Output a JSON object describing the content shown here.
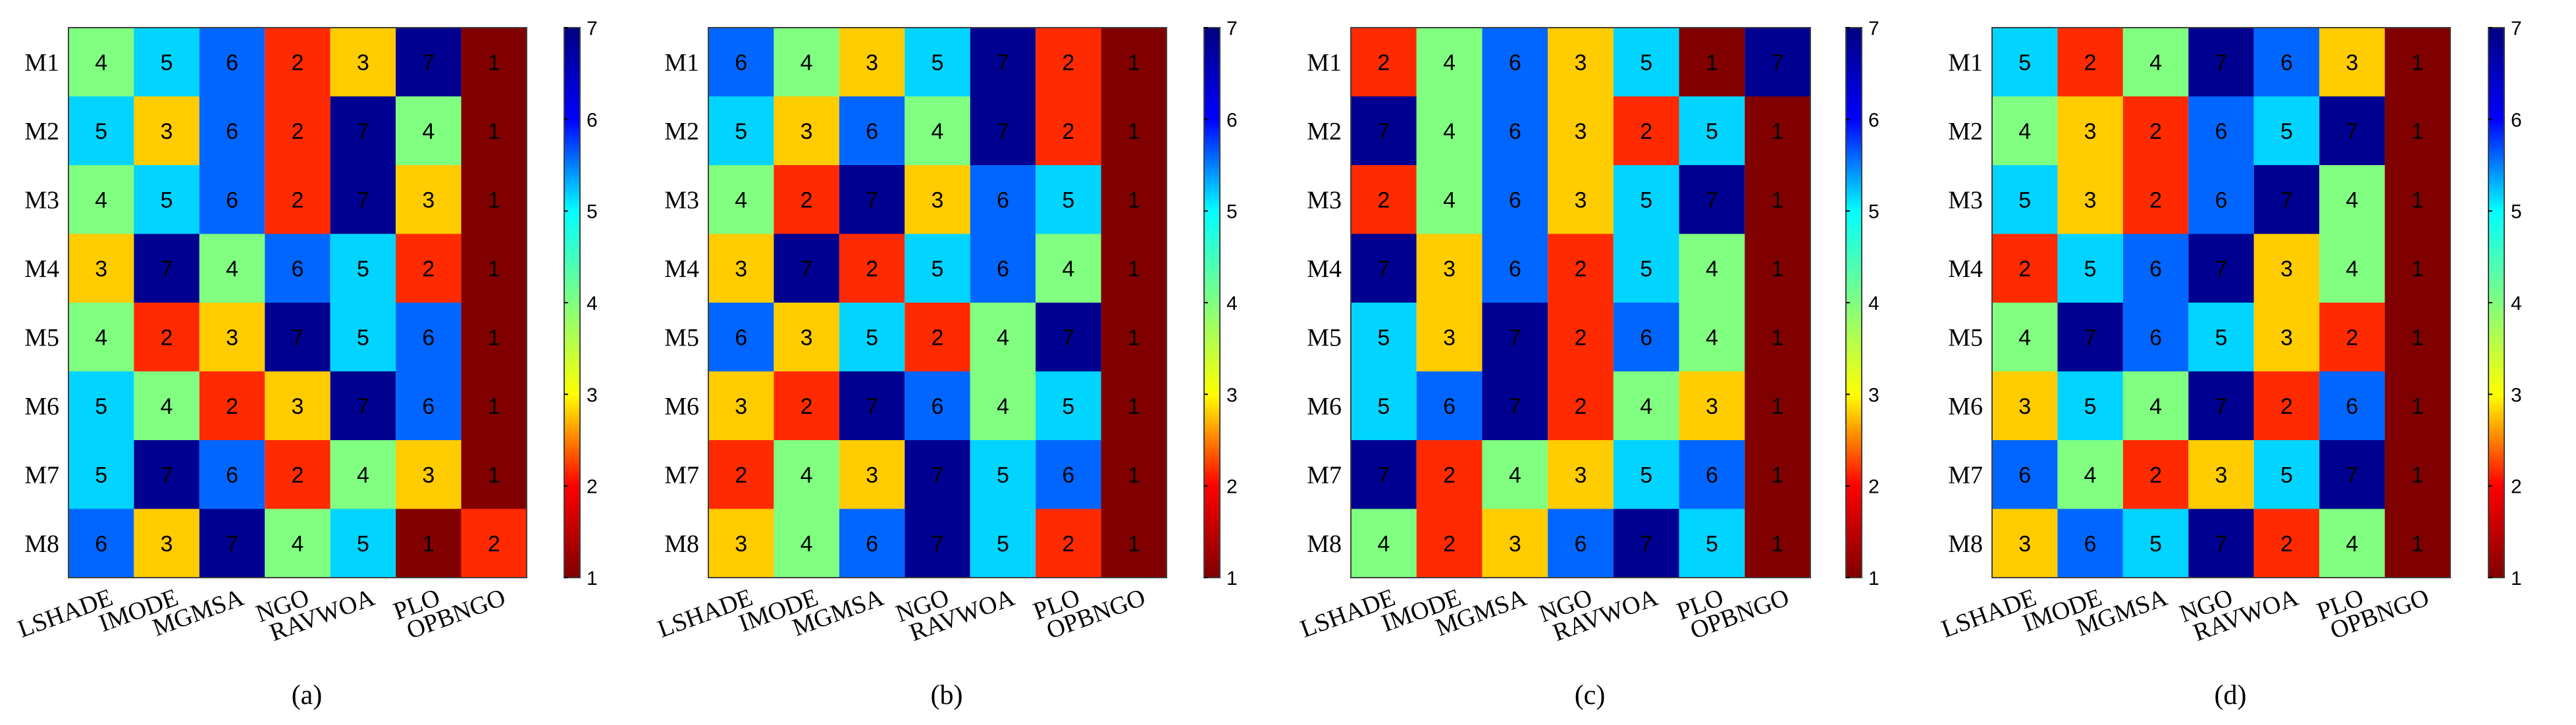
{
  "chart_data": [
    {
      "type": "heatmap",
      "panel_label": "(a)",
      "rows": [
        "M1",
        "M2",
        "M3",
        "M4",
        "M5",
        "M6",
        "M7",
        "M8"
      ],
      "columns": [
        "LSHADE",
        "IMODE",
        "MGMSA",
        "NGO",
        "RAVWOA",
        "PLO",
        "OPBNGO"
      ],
      "values": [
        [
          4,
          5,
          6,
          2,
          3,
          7,
          1
        ],
        [
          5,
          3,
          6,
          2,
          7,
          4,
          1
        ],
        [
          4,
          5,
          6,
          2,
          7,
          3,
          1
        ],
        [
          3,
          7,
          4,
          6,
          5,
          2,
          1
        ],
        [
          4,
          2,
          3,
          7,
          5,
          6,
          1
        ],
        [
          5,
          4,
          2,
          3,
          7,
          6,
          1
        ],
        [
          5,
          7,
          6,
          2,
          4,
          3,
          1
        ],
        [
          6,
          3,
          7,
          4,
          5,
          1,
          2
        ]
      ],
      "colorbar": {
        "min": 1,
        "max": 7,
        "ticks": [
          "1",
          "2",
          "3",
          "4",
          "5",
          "6",
          "7"
        ],
        "colormap": "jet"
      }
    },
    {
      "type": "heatmap",
      "panel_label": "(b)",
      "rows": [
        "M1",
        "M2",
        "M3",
        "M4",
        "M5",
        "M6",
        "M7",
        "M8"
      ],
      "columns": [
        "LSHADE",
        "IMODE",
        "MGMSA",
        "NGO",
        "RAVWOA",
        "PLO",
        "OPBNGO"
      ],
      "values": [
        [
          6,
          4,
          3,
          5,
          7,
          2,
          1
        ],
        [
          5,
          3,
          6,
          4,
          7,
          2,
          1
        ],
        [
          4,
          2,
          7,
          3,
          6,
          5,
          1
        ],
        [
          3,
          7,
          2,
          5,
          6,
          4,
          1
        ],
        [
          6,
          3,
          5,
          2,
          4,
          7,
          1
        ],
        [
          3,
          2,
          7,
          6,
          4,
          5,
          1
        ],
        [
          2,
          4,
          3,
          7,
          5,
          6,
          1
        ],
        [
          3,
          4,
          6,
          7,
          5,
          2,
          1
        ]
      ],
      "colorbar": {
        "min": 1,
        "max": 7,
        "ticks": [
          "1",
          "2",
          "3",
          "4",
          "5",
          "6",
          "7"
        ],
        "colormap": "jet"
      }
    },
    {
      "type": "heatmap",
      "panel_label": "(c)",
      "rows": [
        "M1",
        "M2",
        "M3",
        "M4",
        "M5",
        "M6",
        "M7",
        "M8"
      ],
      "columns": [
        "LSHADE",
        "IMODE",
        "MGMSA",
        "NGO",
        "RAVWOA",
        "PLO",
        "OPBNGO"
      ],
      "values": [
        [
          2,
          4,
          6,
          3,
          5,
          1,
          7
        ],
        [
          7,
          4,
          6,
          3,
          2,
          5,
          1
        ],
        [
          2,
          4,
          6,
          3,
          5,
          7,
          1
        ],
        [
          7,
          3,
          6,
          2,
          5,
          4,
          1
        ],
        [
          5,
          3,
          7,
          2,
          6,
          4,
          1
        ],
        [
          5,
          6,
          7,
          2,
          4,
          3,
          1
        ],
        [
          7,
          2,
          4,
          3,
          5,
          6,
          1
        ],
        [
          4,
          2,
          3,
          6,
          7,
          5,
          1
        ]
      ],
      "colorbar": {
        "min": 1,
        "max": 7,
        "ticks": [
          "1",
          "2",
          "3",
          "4",
          "5",
          "6",
          "7"
        ],
        "colormap": "jet"
      }
    },
    {
      "type": "heatmap",
      "panel_label": "(d)",
      "rows": [
        "M1",
        "M2",
        "M3",
        "M4",
        "M5",
        "M6",
        "M7",
        "M8"
      ],
      "columns": [
        "LSHADE",
        "IMODE",
        "MGMSA",
        "NGO",
        "RAVWOA",
        "PLO",
        "OPBNGO"
      ],
      "values": [
        [
          5,
          2,
          4,
          7,
          6,
          3,
          1
        ],
        [
          4,
          3,
          2,
          6,
          5,
          7,
          1
        ],
        [
          5,
          3,
          2,
          6,
          7,
          4,
          1
        ],
        [
          2,
          5,
          6,
          7,
          3,
          4,
          1
        ],
        [
          4,
          7,
          6,
          5,
          3,
          2,
          1
        ],
        [
          3,
          5,
          4,
          7,
          2,
          6,
          1
        ],
        [
          6,
          4,
          2,
          3,
          5,
          7,
          1
        ],
        [
          3,
          6,
          5,
          7,
          2,
          4,
          1
        ]
      ],
      "colorbar": {
        "min": 1,
        "max": 7,
        "ticks": [
          "1",
          "2",
          "3",
          "4",
          "5",
          "6",
          "7"
        ],
        "colormap": "jet"
      }
    }
  ]
}
